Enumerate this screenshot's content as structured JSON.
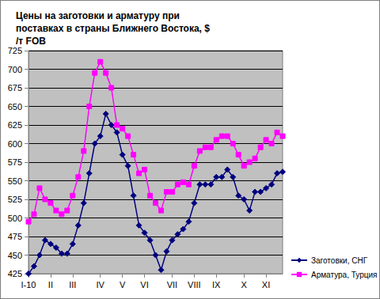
{
  "chart_data": {
    "type": "line",
    "title": "Цены на заготовки и арматуру при поставках в страны Ближнего Востока, $/т FOB",
    "categories": [
      "I-10",
      null,
      null,
      null,
      "II",
      null,
      null,
      null,
      "III",
      null,
      null,
      null,
      null,
      "IV",
      null,
      null,
      null,
      "V",
      null,
      null,
      null,
      "VI",
      null,
      null,
      null,
      null,
      "VII",
      null,
      null,
      null,
      "VIII",
      null,
      null,
      null,
      "IX",
      null,
      null,
      null,
      null,
      "X",
      null,
      null,
      null,
      "XI",
      null,
      null,
      null
    ],
    "series": [
      {
        "name": "Заготовки, СНГ",
        "color": "#000080",
        "marker": "diamond",
        "values": [
          425,
          435,
          450,
          470,
          465,
          460,
          452,
          452,
          465,
          490,
          520,
          560,
          600,
          610,
          640,
          625,
          615,
          585,
          570,
          530,
          490,
          480,
          470,
          450,
          430,
          455,
          470,
          478,
          485,
          495,
          520,
          545,
          545,
          545,
          555,
          555,
          565,
          555,
          530,
          525,
          510,
          535,
          535,
          540,
          545,
          560,
          562
        ]
      },
      {
        "name": "Арматура, Турция",
        "color": "#ff00ff",
        "marker": "square",
        "values": [
          495,
          505,
          540,
          525,
          520,
          510,
          505,
          510,
          530,
          555,
          590,
          650,
          695,
          710,
          695,
          675,
          625,
          620,
          610,
          585,
          560,
          565,
          530,
          520,
          510,
          535,
          535,
          545,
          548,
          545,
          570,
          590,
          595,
          595,
          605,
          610,
          610,
          600,
          585,
          570,
          575,
          580,
          595,
          605,
          600,
          615,
          610
        ]
      }
    ],
    "ylim": [
      425,
      725
    ],
    "yticks": [
      425,
      450,
      475,
      500,
      525,
      550,
      575,
      600,
      625,
      650,
      675,
      700,
      725
    ],
    "grid": true,
    "legend": "right"
  }
}
